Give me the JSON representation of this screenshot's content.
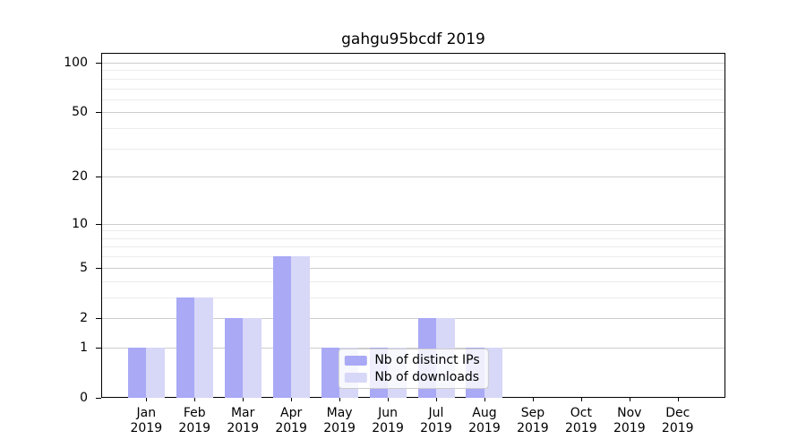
{
  "title": "gahgu95bcdf 2019",
  "chart_data": {
    "type": "bar",
    "title": "gahgu95bcdf 2019",
    "categories": [
      "Jan",
      "Feb",
      "Mar",
      "Apr",
      "May",
      "Jun",
      "Jul",
      "Aug",
      "Sep",
      "Oct",
      "Nov",
      "Dec"
    ],
    "year": "2019",
    "series": [
      {
        "name": "Nb of distinct IPs",
        "color": "#a9a9f6",
        "values": [
          1,
          3,
          2,
          6,
          1,
          1,
          2,
          1,
          0,
          0,
          0,
          0
        ]
      },
      {
        "name": "Nb of downloads",
        "color": "#d7d7f8",
        "values": [
          1,
          3,
          2,
          6,
          1,
          1,
          2,
          1,
          0,
          0,
          0,
          0
        ]
      }
    ],
    "xlabel": "",
    "ylabel": "",
    "yscale": "log1p",
    "ylim": [
      0,
      113
    ],
    "yticks": [
      0,
      1,
      2,
      5,
      10,
      20,
      50,
      100
    ],
    "minor_gridlines": [
      3,
      4,
      6,
      7,
      8,
      9,
      30,
      40,
      60,
      70,
      80,
      90
    ],
    "grid": true,
    "legend_position": "lower center"
  },
  "colors": {
    "bar_distinct_ips": "#a9a9f6",
    "bar_downloads": "#d7d7f8",
    "grid_major": "#cdcdcd",
    "grid_minor": "#ececec",
    "axis": "#000000",
    "background": "#ffffff",
    "legend_border": "#cccccc"
  }
}
